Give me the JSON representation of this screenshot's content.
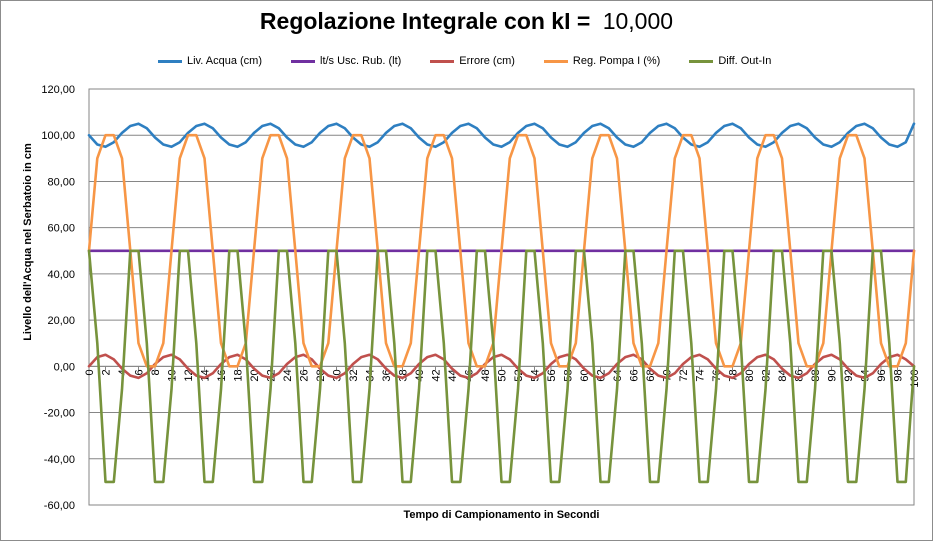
{
  "chart_data": {
    "type": "line",
    "title": "Regolazione Integrale con kI =",
    "title_value": "10,000",
    "xlabel": "Tempo di Campionamento in Secondi",
    "ylabel": "Livello dell'Acqua nel Serbatoio in cm",
    "xlim": [
      0,
      100
    ],
    "ylim": [
      -60,
      120
    ],
    "ytick_step": 20,
    "xtick_step": 2,
    "ytick_labels": [
      "-60,00",
      "-40,00",
      "-20,00",
      "0,00",
      "20,00",
      "40,00",
      "60,00",
      "80,00",
      "100,00",
      "120,00"
    ],
    "xtick_labels": [
      "0",
      "2",
      "4",
      "6",
      "8",
      "10",
      "12",
      "14",
      "16",
      "18",
      "20",
      "22",
      "24",
      "26",
      "28",
      "30",
      "32",
      "34",
      "36",
      "38",
      "40",
      "42",
      "44",
      "46",
      "48",
      "50",
      "52",
      "54",
      "56",
      "58",
      "60",
      "62",
      "64",
      "66",
      "68",
      "70",
      "72",
      "74",
      "76",
      "78",
      "80",
      "82",
      "84",
      "86",
      "88",
      "90",
      "92",
      "94",
      "96",
      "98",
      "100"
    ],
    "grid": true,
    "legend_position": "top",
    "x": [
      0,
      1,
      2,
      3,
      4,
      5,
      6,
      7,
      8,
      9,
      10,
      11,
      12,
      13,
      14,
      15,
      16,
      17,
      18,
      19,
      20,
      21,
      22,
      23,
      24,
      25,
      26,
      27,
      28,
      29,
      30,
      31,
      32,
      33,
      34,
      35,
      36,
      37,
      38,
      39,
      40,
      41,
      42,
      43,
      44,
      45,
      46,
      47,
      48,
      49,
      50,
      51,
      52,
      53,
      54,
      55,
      56,
      57,
      58,
      59,
      60,
      61,
      62,
      63,
      64,
      65,
      66,
      67,
      68,
      69,
      70,
      71,
      72,
      73,
      74,
      75,
      76,
      77,
      78,
      79,
      80,
      81,
      82,
      83,
      84,
      85,
      86,
      87,
      88,
      89,
      90,
      91,
      92,
      93,
      94,
      95,
      96,
      97,
      98,
      99,
      100
    ],
    "series": [
      {
        "name": "Liv. Acqua (cm)",
        "color": "#2e7fc1",
        "values": [
          100,
          96,
          95,
          97,
          101,
          104,
          105,
          103,
          99,
          96,
          95,
          97,
          101,
          104,
          105,
          103,
          99,
          96,
          95,
          97,
          101,
          104,
          105,
          103,
          99,
          96,
          95,
          97,
          101,
          104,
          105,
          103,
          99,
          96,
          95,
          97,
          101,
          104,
          105,
          103,
          99,
          96,
          95,
          97,
          101,
          104,
          105,
          103,
          99,
          96,
          95,
          97,
          101,
          104,
          105,
          103,
          99,
          96,
          95,
          97,
          101,
          104,
          105,
          103,
          99,
          96,
          95,
          97,
          101,
          104,
          105,
          103,
          99,
          96,
          95,
          97,
          101,
          104,
          105,
          103,
          99,
          96,
          95,
          97,
          101,
          104,
          105,
          103,
          99,
          96,
          95,
          97,
          101,
          104,
          105,
          103,
          99,
          96,
          95,
          97,
          105
        ]
      },
      {
        "name": "lt/s Usc. Rub. (lt)",
        "color": "#7030a0",
        "values": [
          50,
          50,
          50,
          50,
          50,
          50,
          50,
          50,
          50,
          50,
          50,
          50,
          50,
          50,
          50,
          50,
          50,
          50,
          50,
          50,
          50,
          50,
          50,
          50,
          50,
          50,
          50,
          50,
          50,
          50,
          50,
          50,
          50,
          50,
          50,
          50,
          50,
          50,
          50,
          50,
          50,
          50,
          50,
          50,
          50,
          50,
          50,
          50,
          50,
          50,
          50,
          50,
          50,
          50,
          50,
          50,
          50,
          50,
          50,
          50,
          50,
          50,
          50,
          50,
          50,
          50,
          50,
          50,
          50,
          50,
          50,
          50,
          50,
          50,
          50,
          50,
          50,
          50,
          50,
          50,
          50,
          50,
          50,
          50,
          50,
          50,
          50,
          50,
          50,
          50,
          50,
          50,
          50,
          50,
          50,
          50,
          50,
          50,
          50,
          50,
          50
        ]
      },
      {
        "name": "Errore (cm)",
        "color": "#c0504d",
        "values": [
          0,
          4,
          5,
          3,
          -1,
          -4,
          -5,
          -3,
          1,
          4,
          5,
          3,
          -1,
          -4,
          -5,
          -3,
          1,
          4,
          5,
          3,
          -1,
          -4,
          -5,
          -3,
          1,
          4,
          5,
          3,
          -1,
          -4,
          -5,
          -3,
          1,
          4,
          5,
          3,
          -1,
          -4,
          -5,
          -3,
          1,
          4,
          5,
          3,
          -1,
          -4,
          -5,
          -3,
          1,
          4,
          5,
          3,
          -1,
          -4,
          -5,
          -3,
          1,
          4,
          5,
          3,
          -1,
          -4,
          -5,
          -3,
          1,
          4,
          5,
          3,
          -1,
          -4,
          -5,
          -3,
          1,
          4,
          5,
          3,
          -1,
          -4,
          -5,
          -3,
          1,
          4,
          5,
          3,
          -1,
          -4,
          -5,
          -3,
          1,
          4,
          5,
          3,
          -1,
          -4,
          -5,
          -3,
          1,
          4,
          5,
          3,
          0
        ]
      },
      {
        "name": "Reg. Pompa I (%)",
        "color": "#f79646",
        "values": [
          50,
          90,
          100,
          100,
          90,
          50,
          10,
          0,
          0,
          10,
          50,
          90,
          100,
          100,
          90,
          50,
          10,
          0,
          0,
          10,
          50,
          90,
          100,
          100,
          90,
          50,
          10,
          0,
          0,
          10,
          50,
          90,
          100,
          100,
          90,
          50,
          10,
          0,
          0,
          10,
          50,
          90,
          100,
          100,
          90,
          50,
          10,
          0,
          0,
          10,
          50,
          90,
          100,
          100,
          90,
          50,
          10,
          0,
          0,
          10,
          50,
          90,
          100,
          100,
          90,
          50,
          10,
          0,
          0,
          10,
          50,
          90,
          100,
          100,
          90,
          50,
          10,
          0,
          0,
          10,
          50,
          90,
          100,
          100,
          90,
          50,
          10,
          0,
          0,
          10,
          50,
          90,
          100,
          100,
          90,
          50,
          10,
          0,
          0,
          10,
          50
        ]
      },
      {
        "name": "Diff.  Out-In",
        "color": "#77933c",
        "values": [
          50,
          10,
          -50,
          -50,
          -10,
          50,
          50,
          10,
          -50,
          -50,
          -10,
          50,
          50,
          10,
          -50,
          -50,
          -10,
          50,
          50,
          10,
          -50,
          -50,
          -10,
          50,
          50,
          10,
          -50,
          -50,
          -10,
          50,
          50,
          10,
          -50,
          -50,
          -10,
          50,
          50,
          10,
          -50,
          -50,
          -10,
          50,
          50,
          10,
          -50,
          -50,
          -10,
          50,
          50,
          10,
          -50,
          -50,
          -10,
          50,
          50,
          10,
          -50,
          -50,
          -10,
          50,
          50,
          10,
          -50,
          -50,
          -10,
          50,
          50,
          10,
          -50,
          -50,
          -10,
          50,
          50,
          10,
          -50,
          -50,
          -10,
          50,
          50,
          10,
          -50,
          -50,
          -10,
          50,
          50,
          10,
          -50,
          -50,
          -10,
          50,
          50,
          10,
          -50,
          -50,
          -10,
          50,
          50,
          10,
          -50,
          -50,
          0
        ]
      }
    ]
  }
}
